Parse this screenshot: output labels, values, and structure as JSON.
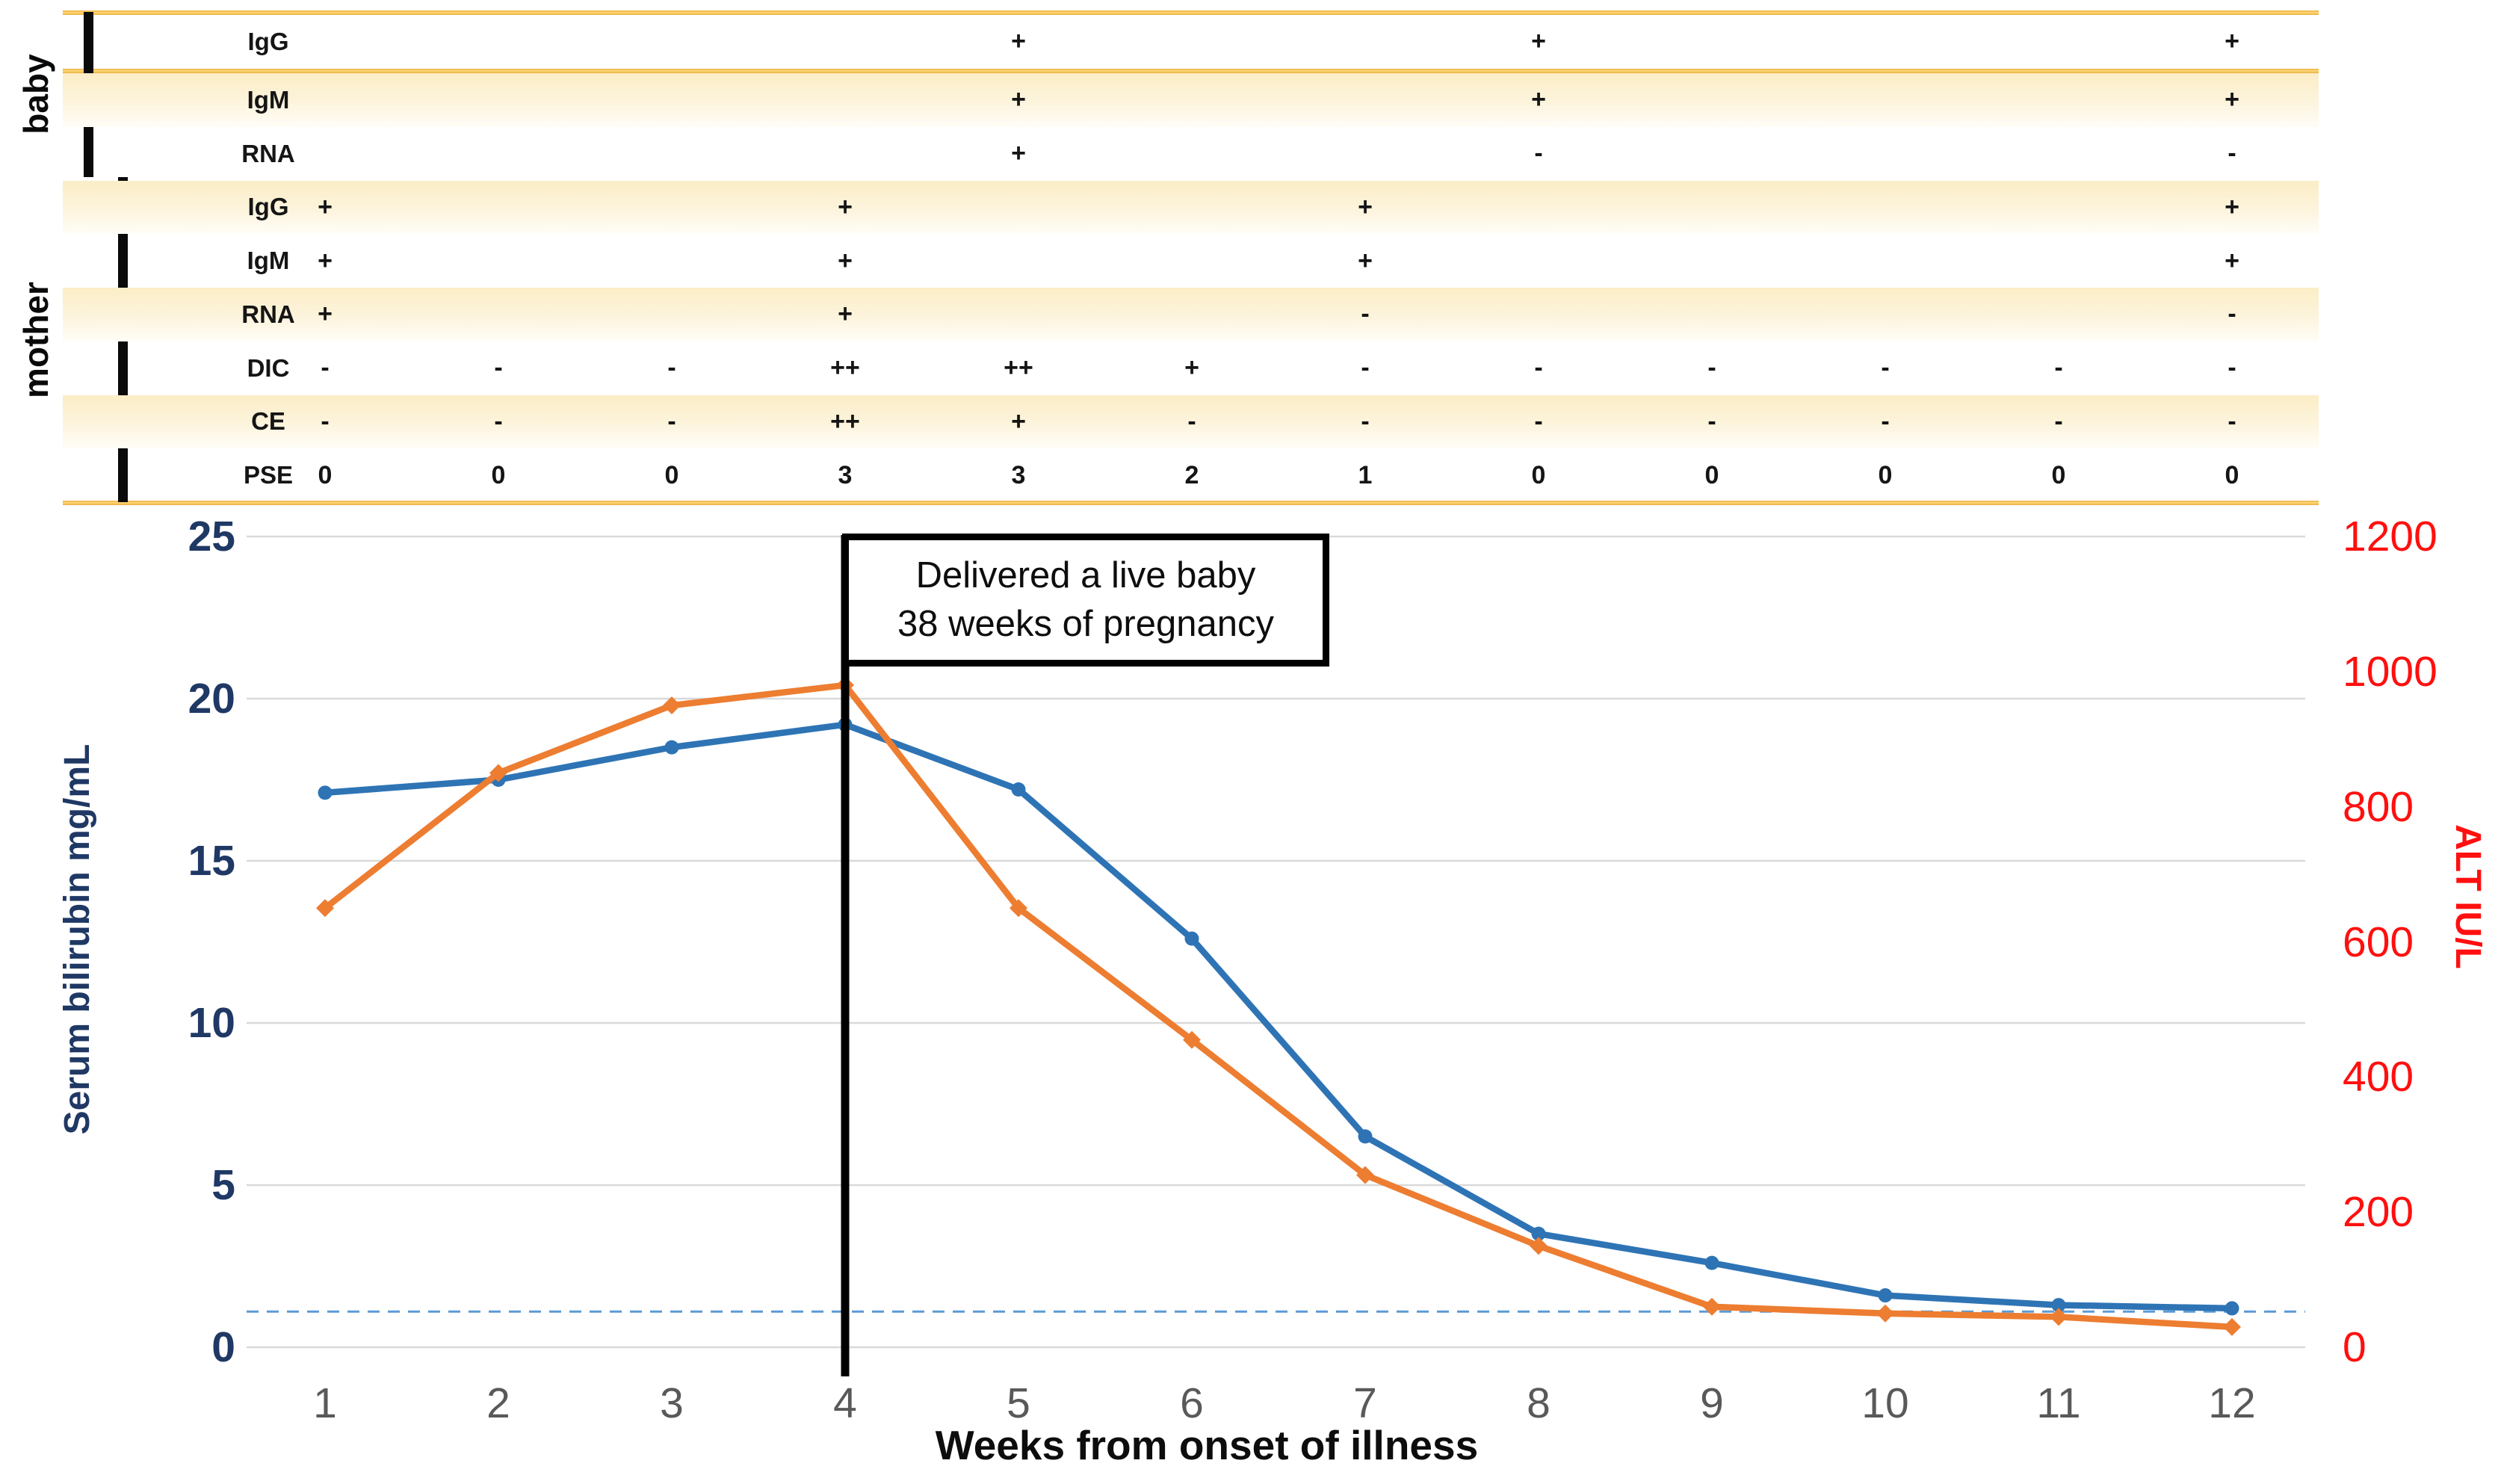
{
  "table": {
    "groups": [
      {
        "label": "baby",
        "rows": [
          {
            "label": "IgG",
            "values": [
              "",
              "",
              "",
              "",
              "+",
              "",
              "",
              "+",
              "",
              "",
              "",
              "+"
            ]
          },
          {
            "label": "IgM",
            "values": [
              "",
              "",
              "",
              "",
              "+",
              "",
              "",
              "+",
              "",
              "",
              "",
              "+"
            ]
          },
          {
            "label": "RNA",
            "values": [
              "",
              "",
              "",
              "",
              "+",
              "",
              "",
              "-",
              "",
              "",
              "",
              "-"
            ]
          }
        ]
      },
      {
        "label": "mother",
        "rows": [
          {
            "label": "IgG",
            "values": [
              "+",
              "",
              "",
              "+",
              "",
              "",
              "+",
              "",
              "",
              "",
              "",
              "+"
            ]
          },
          {
            "label": "IgM",
            "values": [
              "+",
              "",
              "",
              "+",
              "",
              "",
              "+",
              "",
              "",
              "",
              "",
              "+"
            ]
          },
          {
            "label": "RNA",
            "values": [
              "+",
              "",
              "",
              "+",
              "",
              "",
              "-",
              "",
              "",
              "",
              "",
              "-"
            ]
          },
          {
            "label": "DIC",
            "values": [
              "-",
              "-",
              "-",
              "++",
              "++",
              "+",
              "-",
              "-",
              "-",
              "-",
              "-",
              "-"
            ]
          },
          {
            "label": "CE",
            "values": [
              "-",
              "-",
              "-",
              "++",
              "+",
              "-",
              "-",
              "-",
              "-",
              "-",
              "-",
              "-"
            ]
          },
          {
            "label": "PSE",
            "values": [
              "0",
              "0",
              "0",
              "3",
              "3",
              "2",
              "1",
              "0",
              "0",
              "0",
              "0",
              "0"
            ]
          }
        ]
      }
    ]
  },
  "chart_data": {
    "type": "line",
    "x": [
      1,
      2,
      3,
      4,
      5,
      6,
      7,
      8,
      9,
      10,
      11,
      12
    ],
    "xlabel": "Weeks from onset of illness",
    "series": [
      {
        "name": "Serum bilirubin",
        "axis": "left",
        "color": "#2E74B5",
        "marker": "circle",
        "values": [
          17.1,
          17.5,
          18.5,
          19.2,
          17.2,
          12.6,
          6.5,
          3.5,
          2.6,
          1.6,
          1.3,
          1.2
        ]
      },
      {
        "name": "ALT",
        "axis": "right",
        "color": "#ED7D31",
        "marker": "diamond",
        "values": [
          650,
          850,
          950,
          980,
          650,
          455,
          255,
          150,
          60,
          50,
          45,
          30
        ]
      }
    ],
    "left_axis": {
      "label": "Serum bilirubin mg/mL",
      "ticks": [
        0,
        5,
        10,
        15,
        20,
        25
      ],
      "range": [
        0,
        25
      ],
      "color": "#1F3864"
    },
    "right_axis": {
      "label": "ALT IU/L",
      "ticks": [
        0,
        200,
        400,
        600,
        800,
        1000,
        1200
      ],
      "range": [
        0,
        1200
      ],
      "color": "#FF0F0F"
    },
    "reference_line": {
      "value": 1.1,
      "axis": "left",
      "style": "dashed",
      "color": "#5B9BD5"
    },
    "event_line": {
      "week": 4,
      "label_line1": "Delivered a live baby",
      "label_line2": "38 weeks of pregnancy"
    },
    "grid": true,
    "gridline_color": "#D9D9D9",
    "legend_position": "none"
  }
}
